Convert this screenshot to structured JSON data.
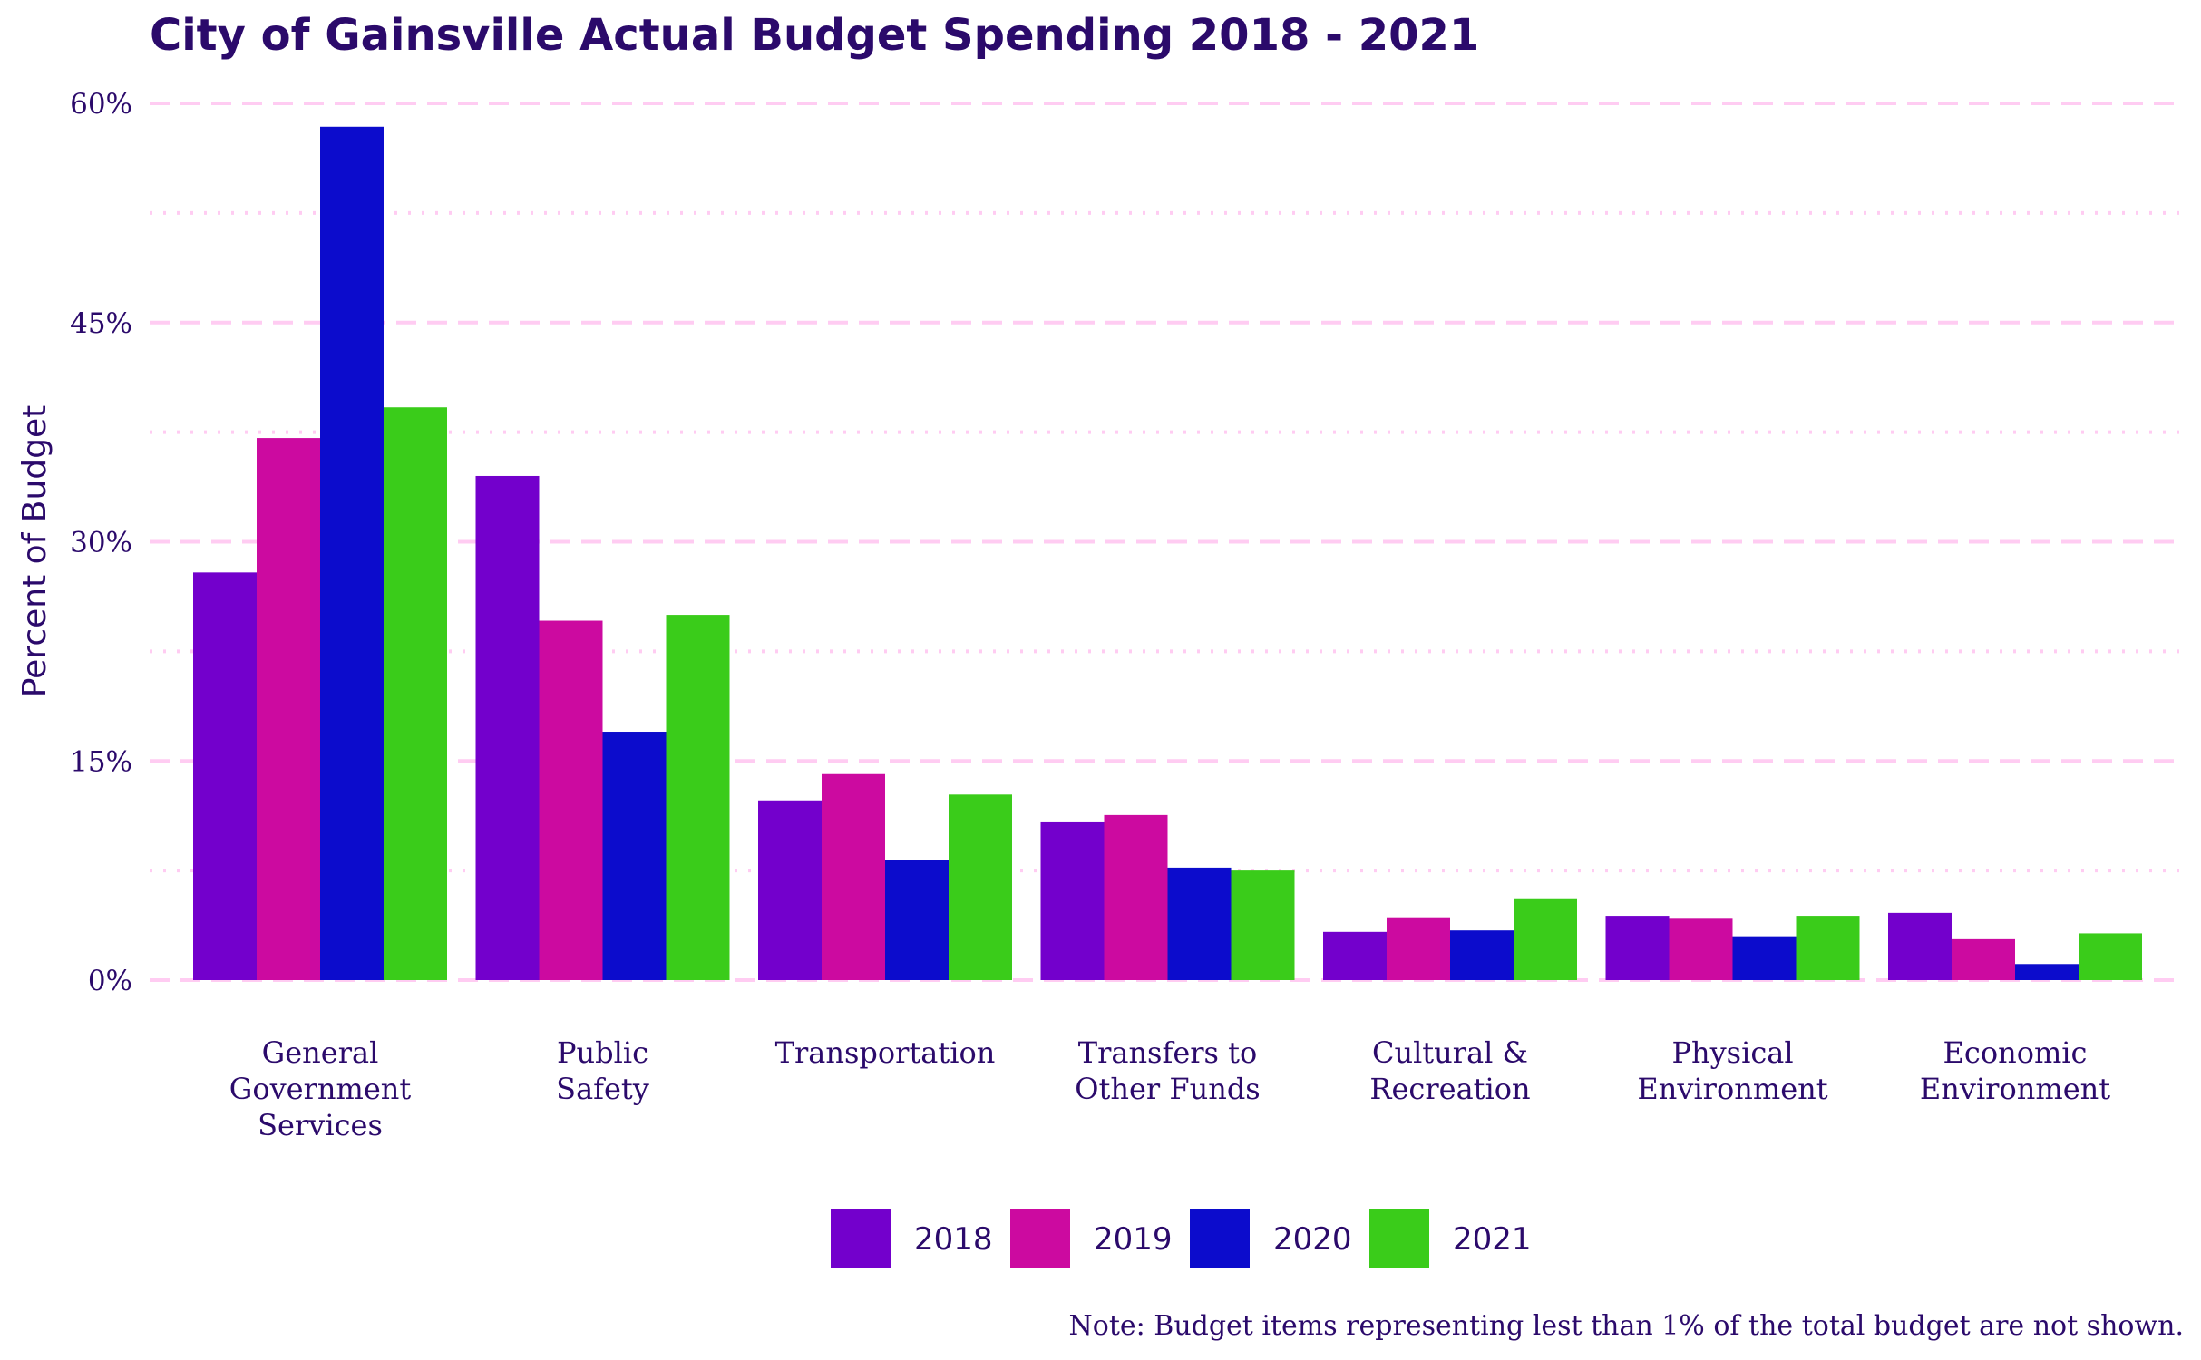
{
  "chart_data": {
    "type": "bar",
    "title": "City of Gainsville Actual Budget Spending 2018 - 2021",
    "xlabel": "",
    "ylabel": "Percent of Budget",
    "ylim": [
      0,
      60
    ],
    "yticks": [
      0,
      15,
      30,
      45,
      60
    ],
    "ytick_labels": [
      "0%",
      "15%",
      "30%",
      "45%",
      "60%"
    ],
    "grid": true,
    "legend_position": "bottom",
    "categories": [
      [
        "General",
        "Government",
        "Services"
      ],
      [
        "Public",
        "Safety"
      ],
      [
        "Transportation"
      ],
      [
        "Transfers to",
        "Other Funds"
      ],
      [
        "Cultural &",
        "Recreation"
      ],
      [
        "Physical",
        "Environment"
      ],
      [
        "Economic",
        "Environment"
      ]
    ],
    "series": [
      {
        "name": "2018",
        "color": "#7300cc",
        "values": [
          27.9,
          34.5,
          12.3,
          10.8,
          3.3,
          4.4,
          4.6
        ]
      },
      {
        "name": "2019",
        "color": "#cc0aa0",
        "values": [
          37.1,
          24.6,
          14.1,
          11.3,
          4.3,
          4.2,
          2.8
        ]
      },
      {
        "name": "2020",
        "color": "#0c0ccc",
        "values": [
          58.4,
          17.0,
          8.2,
          7.7,
          3.4,
          3.0,
          1.1
        ]
      },
      {
        "name": "2021",
        "color": "#3acc1a",
        "values": [
          39.2,
          25.0,
          12.7,
          7.5,
          5.6,
          4.4,
          3.2
        ]
      }
    ],
    "note": "Note: Budget items representing lest than 1% of the total budget are not shown."
  }
}
